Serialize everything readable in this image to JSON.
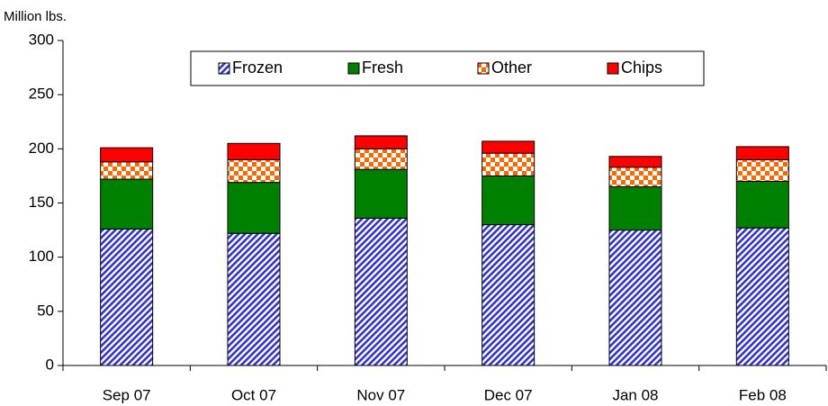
{
  "chart_data": {
    "type": "stacked_bar",
    "y_label": "Million lbs.",
    "categories": [
      "Sep 07",
      "Oct 07",
      "Nov 07",
      "Dec 07",
      "Jan 08",
      "Feb 08"
    ],
    "series": [
      {
        "name": "Frozen",
        "color": "#3333cc",
        "pattern": "hatch",
        "values": [
          126,
          122,
          136,
          130,
          125,
          127
        ]
      },
      {
        "name": "Fresh",
        "color": "#008000",
        "pattern": "solid",
        "values": [
          46,
          47,
          45,
          45,
          40,
          43
        ]
      },
      {
        "name": "Other",
        "color": "#ff6600",
        "pattern": "checker",
        "values": [
          16,
          21,
          19,
          21,
          18,
          20
        ]
      },
      {
        "name": "Chips",
        "color": "#ff0000",
        "pattern": "solid",
        "values": [
          13,
          15,
          12,
          11,
          10,
          12
        ]
      }
    ],
    "ylim": [
      0,
      300
    ],
    "yticks": [
      0,
      50,
      100,
      150,
      200,
      250,
      300
    ],
    "grid": false,
    "legend": "top"
  }
}
